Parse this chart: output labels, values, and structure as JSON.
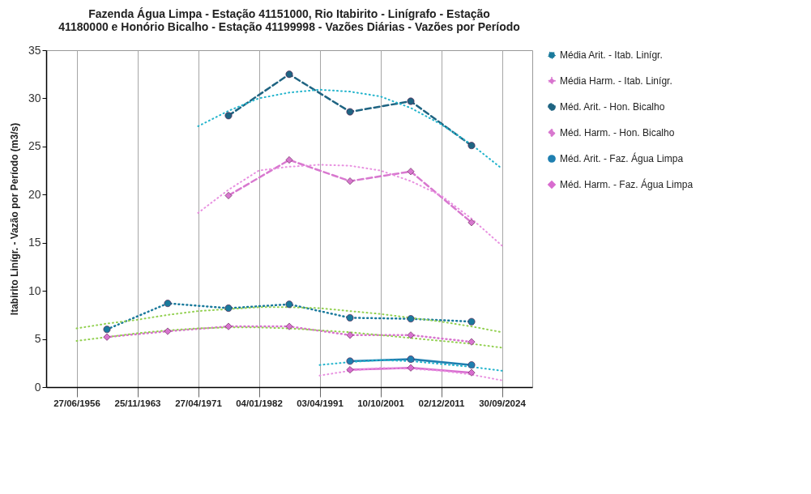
{
  "chart_data": {
    "type": "line",
    "title": "Fazenda Água Limpa -  Estação 41151000, Rio Itabirito - Linígrafo -  Estação 41180000 e Honório Bicalho -  Estação 41199998 - Vazões Diárias - Vazões por Período",
    "ylabel": "Itabirito Linígr. - Vazão por Período (m3/s)",
    "categories": [
      "27/06/1956",
      null,
      "25/11/1963",
      null,
      "27/04/1971",
      null,
      "04/01/1982",
      null,
      "03/04/1991",
      null,
      "10/10/2001",
      null,
      "02/12/2011",
      null,
      "30/09/2024"
    ],
    "ylim": [
      0,
      35
    ],
    "yticks": [
      0,
      5,
      10,
      15,
      20,
      25,
      30,
      35
    ],
    "grid": "x",
    "legend": "right",
    "series": [
      {
        "name": "Média Arit. - Itab. Linígr.",
        "color": "#1a7a9c",
        "line_style": "dotted",
        "marker": "circle",
        "values": [
          null,
          6.0,
          null,
          8.7,
          null,
          8.2,
          null,
          8.6,
          null,
          7.2,
          null,
          7.1,
          null,
          6.8,
          null
        ]
      },
      {
        "name": "Média Harm. - Itab. Linígr.",
        "color": "#d874cf",
        "line_style": "dotted",
        "marker": "diamond",
        "values": [
          null,
          5.2,
          null,
          5.8,
          null,
          6.3,
          null,
          6.3,
          null,
          5.4,
          null,
          5.4,
          null,
          4.7,
          null
        ]
      },
      {
        "name": "Méd. Arit. - Hon. Bicalho",
        "color": "#1f6482",
        "line_style": "dashed",
        "marker": "circle",
        "values": [
          null,
          null,
          null,
          null,
          null,
          28.2,
          null,
          32.5,
          null,
          28.6,
          null,
          29.7,
          null,
          25.1,
          null
        ]
      },
      {
        "name": "Méd. Harm. - Hon. Bicalho",
        "color": "#d878cf",
        "line_style": "dashed",
        "marker": "diamond",
        "values": [
          null,
          null,
          null,
          null,
          null,
          19.9,
          null,
          23.6,
          null,
          21.4,
          null,
          22.4,
          null,
          17.1,
          null
        ]
      },
      {
        "name": "Méd. Arit. - Faz. Água Limpa",
        "color": "#1f7fb0",
        "line_style": "solid",
        "marker": "circle",
        "values": [
          null,
          null,
          null,
          null,
          null,
          null,
          null,
          null,
          null,
          2.7,
          null,
          2.9,
          null,
          2.3,
          null
        ]
      },
      {
        "name": "Méd. Harm. -  Faz. Água Limpa",
        "color": "#d86ccf",
        "line_style": "solid",
        "marker": "diamond",
        "values": [
          null,
          null,
          null,
          null,
          null,
          null,
          null,
          null,
          null,
          1.8,
          null,
          2.0,
          null,
          1.5,
          null
        ]
      },
      {
        "type": "line",
        "color": "#22b4cc",
        "line_style": "dotted",
        "marker": "none",
        "values": [
          null,
          null,
          null,
          null,
          27.1,
          28.7,
          30.0,
          30.6,
          30.9,
          30.7,
          30.2,
          29.0,
          27.3,
          25.2,
          22.7
        ]
      },
      {
        "type": "line",
        "color": "#e890e0",
        "line_style": "dotted",
        "marker": "none",
        "values": [
          null,
          null,
          null,
          null,
          18.1,
          20.5,
          22.5,
          22.9,
          23.1,
          23.0,
          22.5,
          21.4,
          19.9,
          17.5,
          14.7
        ]
      },
      {
        "type": "line",
        "color": "#92d050",
        "line_style": "dotted",
        "marker": "none",
        "values": [
          6.1,
          6.6,
          7.0,
          7.5,
          7.9,
          8.1,
          8.3,
          8.3,
          8.2,
          7.9,
          7.6,
          7.2,
          6.8,
          6.3,
          5.7
        ]
      },
      {
        "type": "line",
        "color": "#92d050",
        "line_style": "dotted",
        "marker": "none",
        "values": [
          4.8,
          5.2,
          5.6,
          5.9,
          6.1,
          6.2,
          6.2,
          6.1,
          5.9,
          5.7,
          5.4,
          5.1,
          4.8,
          4.5,
          4.1
        ]
      },
      {
        "type": "line",
        "color": "#22b4cc",
        "line_style": "dotted",
        "marker": "none",
        "values": [
          null,
          null,
          null,
          null,
          null,
          null,
          null,
          null,
          2.3,
          2.6,
          2.8,
          2.7,
          2.4,
          2.1,
          1.7
        ]
      },
      {
        "type": "line",
        "color": "#e890e0",
        "line_style": "dotted",
        "marker": "none",
        "values": [
          null,
          null,
          null,
          null,
          null,
          null,
          null,
          null,
          1.2,
          1.7,
          2.0,
          1.9,
          1.7,
          1.3,
          0.7
        ]
      }
    ]
  }
}
